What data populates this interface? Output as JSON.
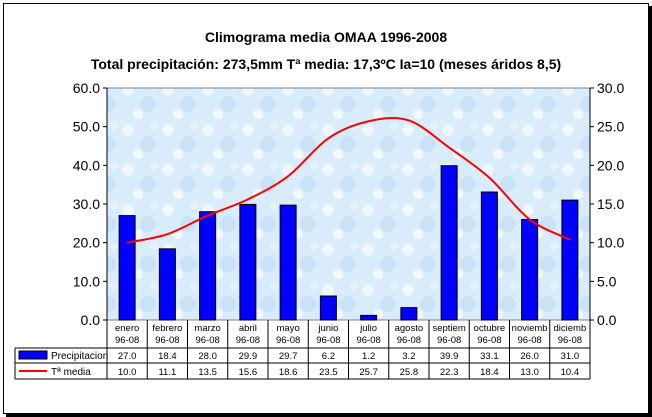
{
  "chart_data": {
    "type": "bar+line",
    "title": "Climograma media OMAA 1996-2008",
    "subtitle": "Total precipitación: 273,5mm  Tª media: 17,3ºC  Ia=10 (meses áridos 8,5)",
    "categories": [
      "enero 96-08",
      "febrero 96-08",
      "marzo 96-08",
      "abril 96-08",
      "mayo 96-08",
      "junio 96-08",
      "julio 96-08",
      "agosto 96-08",
      "septiem 96-08",
      "octubre 96-08",
      "noviemb 96-08",
      "diciemb 96-08"
    ],
    "y_left": {
      "min": 0,
      "max": 60,
      "step": 10,
      "ticks": [
        "0.0",
        "10.0",
        "20.0",
        "30.0",
        "40.0",
        "50.0",
        "60.0"
      ]
    },
    "y_right": {
      "min": 0,
      "max": 30,
      "step": 5,
      "ticks": [
        "0.0",
        "5.0",
        "10.0",
        "15.0",
        "20.0",
        "25.0",
        "30.0"
      ]
    },
    "series": [
      {
        "name": "Precipitacion",
        "type": "bar",
        "axis": "left",
        "color": "#0000ff",
        "values": [
          27.0,
          18.4,
          28.0,
          29.9,
          29.7,
          6.2,
          1.2,
          3.2,
          39.9,
          33.1,
          26.0,
          31.0
        ],
        "labels": [
          "27.0",
          "18.4",
          "28.0",
          "29.9",
          "29.7",
          "6.2",
          "1.2",
          "3.2",
          "39.9",
          "33.1",
          "26.0",
          "31.0"
        ]
      },
      {
        "name": "Tª media",
        "type": "line",
        "axis": "right",
        "color": "#ff0000",
        "values": [
          10.0,
          11.1,
          13.5,
          15.6,
          18.6,
          23.5,
          25.7,
          25.8,
          22.3,
          18.4,
          13.0,
          10.4
        ],
        "labels": [
          "10.0",
          "11.1",
          "13.5",
          "15.6",
          "18.6",
          "23.5",
          "25.7",
          "25.8",
          "22.3",
          "18.4",
          "13.0",
          "10.4"
        ]
      }
    ],
    "legend": "data-table"
  }
}
